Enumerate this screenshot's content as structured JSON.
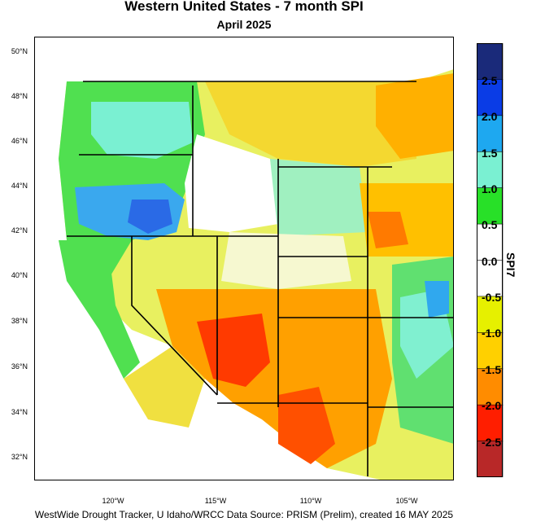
{
  "title": "Western United States - 7 month SPI",
  "subtitle": "April 2025",
  "footer": "WestWide Drought Tracker, U Idaho/WRCC Data Source: PRISM (Prelim), created 16 MAY 2025",
  "lat_ticks": [
    "50°N",
    "48°N",
    "46°N",
    "44°N",
    "42°N",
    "40°N",
    "38°N",
    "36°N",
    "34°N",
    "32°N"
  ],
  "lon_ticks": [
    "120°W",
    "115°W",
    "110°W",
    "105°W"
  ],
  "colorbar": {
    "title": "SPI7",
    "labels": [
      "2.5",
      "2.0",
      "1.5",
      "1.0",
      "0.5",
      "0.0",
      "-0.5",
      "-1.0",
      "-1.5",
      "-2.0",
      "-2.5"
    ],
    "colors": [
      "#1a2a7a",
      "#0a3ce6",
      "#1ea8f0",
      "#7af0d2",
      "#28e028",
      "#ffffff",
      "#ffffff",
      "#e6f000",
      "#ffd000",
      "#ff8c00",
      "#ff1e00",
      "#b82828"
    ]
  }
}
